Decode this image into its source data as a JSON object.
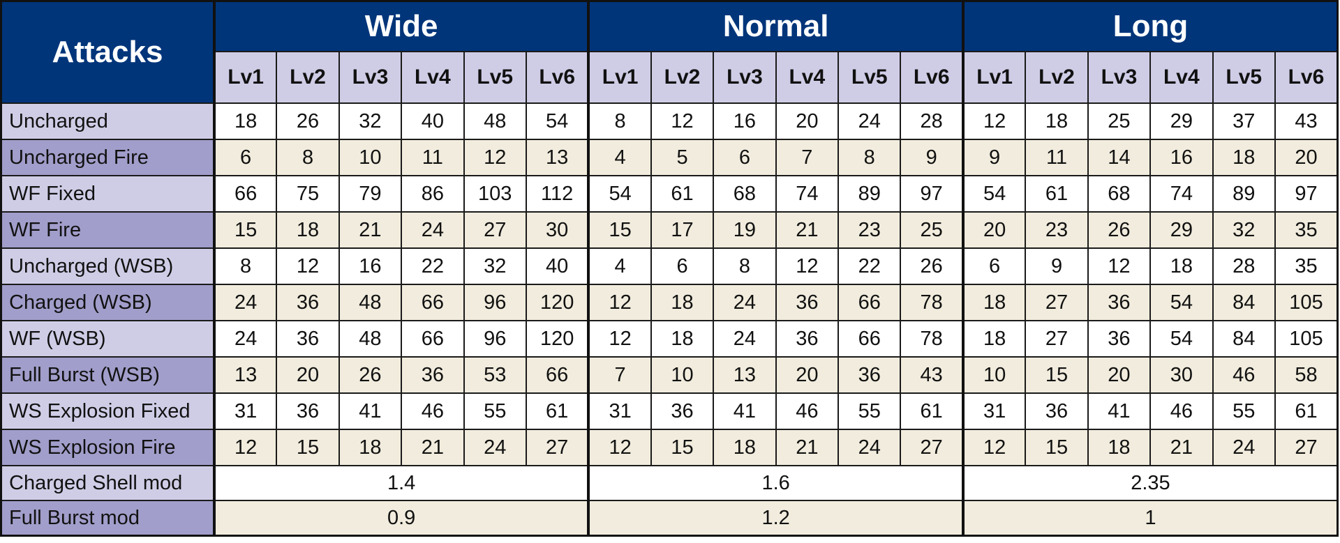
{
  "header": {
    "corner_label": "Attacks",
    "groups": [
      "Wide",
      "Normal",
      "Long"
    ],
    "levels": [
      "Lv1",
      "Lv2",
      "Lv3",
      "Lv4",
      "Lv5",
      "Lv6"
    ]
  },
  "rows": [
    {
      "label": "Uncharged",
      "wide": [
        "18",
        "26",
        "32",
        "40",
        "48",
        "54"
      ],
      "normal": [
        "8",
        "12",
        "16",
        "20",
        "24",
        "28"
      ],
      "long": [
        "12",
        "18",
        "25",
        "29",
        "37",
        "43"
      ]
    },
    {
      "label": "Uncharged Fire",
      "wide": [
        "6",
        "8",
        "10",
        "11",
        "12",
        "13"
      ],
      "normal": [
        "4",
        "5",
        "6",
        "7",
        "8",
        "9"
      ],
      "long": [
        "9",
        "11",
        "14",
        "16",
        "18",
        "20"
      ]
    },
    {
      "label": "WF Fixed",
      "wide": [
        "66",
        "75",
        "79",
        "86",
        "103",
        "112"
      ],
      "normal": [
        "54",
        "61",
        "68",
        "74",
        "89",
        "97"
      ],
      "long": [
        "54",
        "61",
        "68",
        "74",
        "89",
        "97"
      ]
    },
    {
      "label": "WF Fire",
      "wide": [
        "15",
        "18",
        "21",
        "24",
        "27",
        "30"
      ],
      "normal": [
        "15",
        "17",
        "19",
        "21",
        "23",
        "25"
      ],
      "long": [
        "20",
        "23",
        "26",
        "29",
        "32",
        "35"
      ]
    },
    {
      "label": "Uncharged (WSB)",
      "wide": [
        "8",
        "12",
        "16",
        "22",
        "32",
        "40"
      ],
      "normal": [
        "4",
        "6",
        "8",
        "12",
        "22",
        "26"
      ],
      "long": [
        "6",
        "9",
        "12",
        "18",
        "28",
        "35"
      ]
    },
    {
      "label": "Charged (WSB)",
      "wide": [
        "24",
        "36",
        "48",
        "66",
        "96",
        "120"
      ],
      "normal": [
        "12",
        "18",
        "24",
        "36",
        "66",
        "78"
      ],
      "long": [
        "18",
        "27",
        "36",
        "54",
        "84",
        "105"
      ]
    },
    {
      "label": "WF (WSB)",
      "wide": [
        "24",
        "36",
        "48",
        "66",
        "96",
        "120"
      ],
      "normal": [
        "12",
        "18",
        "24",
        "36",
        "66",
        "78"
      ],
      "long": [
        "18",
        "27",
        "36",
        "54",
        "84",
        "105"
      ]
    },
    {
      "label": "Full Burst (WSB)",
      "wide": [
        "13",
        "20",
        "26",
        "36",
        "53",
        "66"
      ],
      "normal": [
        "7",
        "10",
        "13",
        "20",
        "36",
        "43"
      ],
      "long": [
        "10",
        "15",
        "20",
        "30",
        "46",
        "58"
      ]
    },
    {
      "label": "WS Explosion Fixed",
      "wide": [
        "31",
        "36",
        "41",
        "46",
        "55",
        "61"
      ],
      "normal": [
        "31",
        "36",
        "41",
        "46",
        "55",
        "61"
      ],
      "long": [
        "31",
        "36",
        "41",
        "46",
        "55",
        "61"
      ]
    },
    {
      "label": "WS Explosion Fire",
      "wide": [
        "12",
        "15",
        "18",
        "21",
        "24",
        "27"
      ],
      "normal": [
        "12",
        "15",
        "18",
        "21",
        "24",
        "27"
      ],
      "long": [
        "12",
        "15",
        "18",
        "21",
        "24",
        "27"
      ]
    }
  ],
  "mods": [
    {
      "label": "Charged Shell mod",
      "wide": "1.4",
      "normal": "1.6",
      "long": "2.35"
    },
    {
      "label": "Full Burst mod",
      "wide": "0.9",
      "normal": "1.2",
      "long": "1"
    }
  ]
}
